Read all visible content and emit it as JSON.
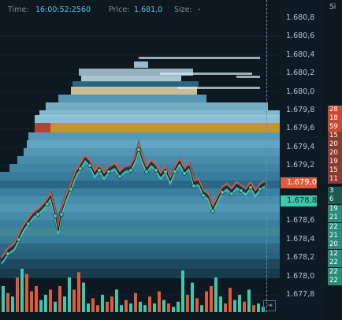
{
  "header": {
    "time_label": "Time:",
    "time_value": "16:00:52:2560",
    "price_label": "Price:",
    "price_value": "1.681,0",
    "size_label": "Size:",
    "size_value": "-"
  },
  "price_axis": {
    "ticks": [
      "1.680,8",
      "1.680,6",
      "1.680,4",
      "1.680,2",
      "1.680,0",
      "1.679,8",
      "1.679,6",
      "1.679,4",
      "1.679,2",
      "1.679,0",
      "1.678,8",
      "1.678,6",
      "1.678,4",
      "1.678,2",
      "1.678,0",
      "1.677,8"
    ],
    "ask_marker": "1.679,0",
    "bid_marker": "1.678,8"
  },
  "size_column": {
    "header": "Si",
    "ask_sizes": [
      "28",
      "18",
      "59",
      "15",
      "20",
      "20",
      "19",
      "15",
      "11"
    ],
    "bid_sizes": [
      "3",
      "6",
      "19",
      "21",
      "22",
      "21",
      "20",
      "12",
      "22",
      "22",
      "22"
    ]
  },
  "colors": {
    "ask": "#e25a3c",
    "bid": "#3ec9ad",
    "heatmap": "#5fb9d6",
    "background": "#0d1820"
  },
  "icons": {
    "scroll_button": "scroll-to-latest-icon"
  },
  "scroll_glyph": "⇥"
}
